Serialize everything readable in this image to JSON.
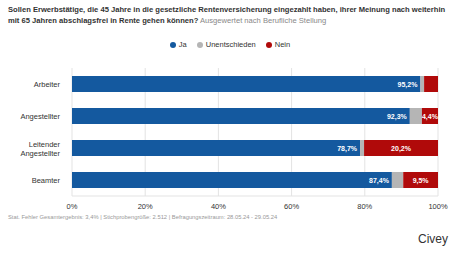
{
  "chart_data": {
    "type": "bar",
    "orientation": "horizontal",
    "stacked": true,
    "data_labels": true,
    "grid": true,
    "legend": "top",
    "title": "Sollen Erwerbstätige, die 45 Jahre in die gesetzliche Rentenversicherung eingezahlt haben, ihrer Meinung nach weiterhin mit 65 Jahren abschlagsfrei in Rente gehen können?",
    "subtitle": "Ausgewertet nach Berufliche Stellung",
    "footer": "Stat. Fehler Gesamtergebnis: 3,4% | Stichprobengröße: 2.512 | Befragungszeitraum: 28.05.24 - 29.05.24",
    "source": "Civey",
    "categories": [
      "Arbeiter",
      "Angestellter",
      "Leitender Angestellter",
      "Beamter"
    ],
    "series": [
      {
        "name": "Ja",
        "color": "#14599f",
        "values": [
          95.2,
          92.3,
          78.7,
          87.4
        ],
        "value_labels": [
          "95,2%",
          "92,3%",
          "78,7%",
          "87,4%"
        ]
      },
      {
        "name": "Unentschieden",
        "color": "#b5b5b5",
        "values": [
          1.0,
          3.3,
          1.1,
          3.1
        ]
      },
      {
        "name": "Nein",
        "color": "#b00a0a",
        "values": [
          3.8,
          4.4,
          20.2,
          9.5
        ],
        "value_labels": [
          null,
          "4,4%",
          "20,2%",
          "9,5%"
        ]
      }
    ],
    "xlim": [
      0,
      100
    ],
    "xticks": [
      {
        "value": 0,
        "label": "0%"
      },
      {
        "value": 20,
        "label": "20%"
      },
      {
        "value": 40,
        "label": "40%"
      },
      {
        "value": 60,
        "label": "60%"
      },
      {
        "value": 80,
        "label": "80%"
      },
      {
        "value": 100,
        "label": "100%"
      }
    ]
  }
}
